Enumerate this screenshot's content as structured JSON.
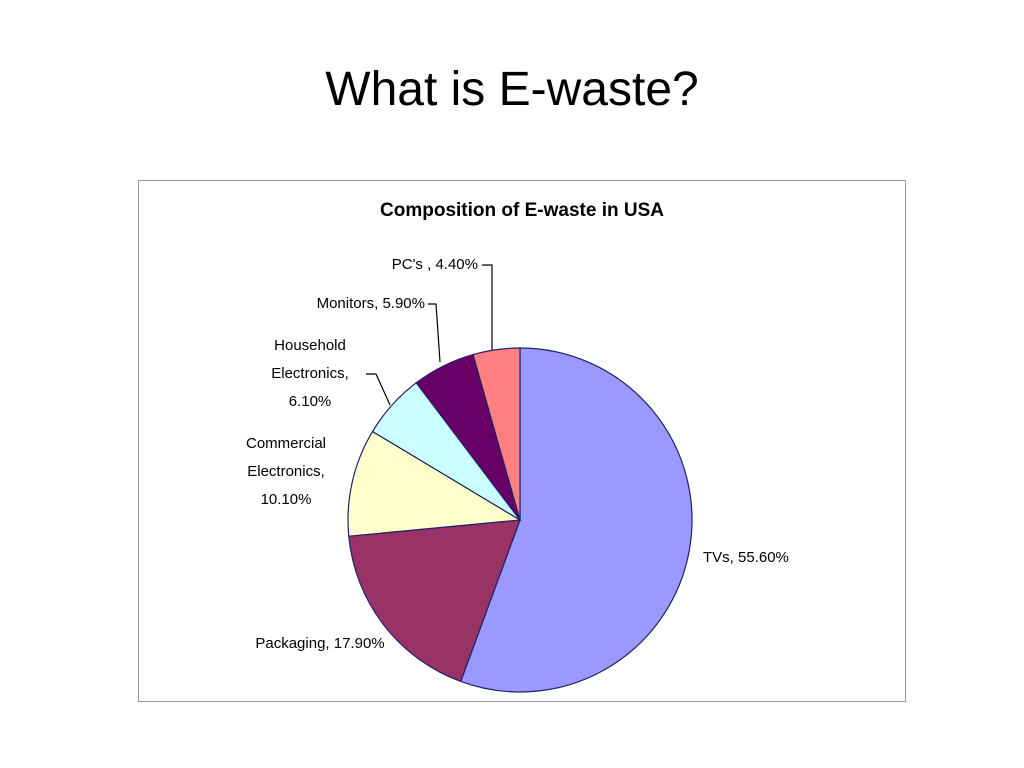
{
  "slide_title": "What is E-waste?",
  "chart_data": {
    "type": "pie",
    "title": "Composition of E-waste in USA",
    "categories": [
      "TVs,",
      "Packaging,",
      "Commercial Electronics,",
      "Household Electronics,",
      "Monitors,",
      "PC's ,"
    ],
    "values": [
      55.6,
      17.9,
      10.1,
      6.1,
      5.9,
      4.4
    ],
    "value_labels": [
      "55.60%",
      "17.90%",
      "10.10%",
      "6.10%",
      "5.90%",
      "4.40%"
    ],
    "colors": [
      "#9999ff",
      "#993366",
      "#ffffcc",
      "#ccffff",
      "#660066",
      "#ff8080"
    ]
  }
}
